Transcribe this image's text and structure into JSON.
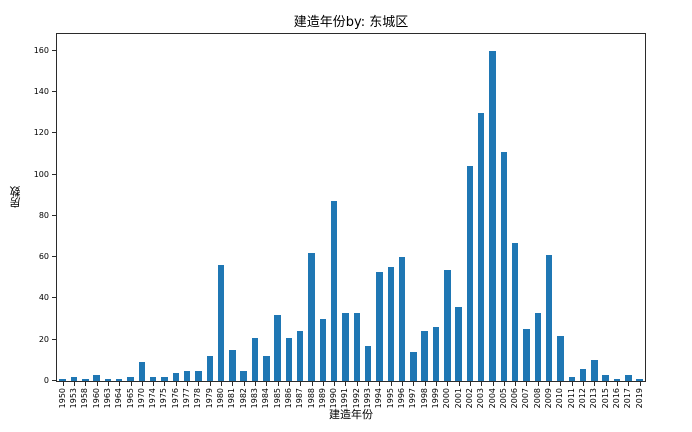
{
  "chart_data": {
    "type": "bar",
    "title": "建造年份by: 东城区",
    "xlabel": "建造年份",
    "ylabel": "房数",
    "categories": [
      "1950",
      "1953",
      "1958",
      "1960",
      "1963",
      "1964",
      "1965",
      "1970",
      "1974",
      "1975",
      "1976",
      "1977",
      "1978",
      "1979",
      "1980",
      "1981",
      "1982",
      "1983",
      "1984",
      "1985",
      "1986",
      "1987",
      "1988",
      "1989",
      "1990",
      "1991",
      "1992",
      "1993",
      "1994",
      "1995",
      "1996",
      "1997",
      "1998",
      "1999",
      "2000",
      "2001",
      "2002",
      "2003",
      "2004",
      "2005",
      "2006",
      "2007",
      "2008",
      "2009",
      "2010",
      "2011",
      "2012",
      "2013",
      "2015",
      "2016",
      "2017",
      "2019"
    ],
    "values": [
      1,
      2,
      1,
      3,
      1,
      1,
      2,
      9,
      2,
      2,
      4,
      5,
      5,
      12,
      56,
      15,
      5,
      21,
      12,
      32,
      21,
      24,
      62,
      30,
      87,
      33,
      33,
      17,
      53,
      55,
      60,
      14,
      24,
      26,
      54,
      36,
      104,
      130,
      160,
      111,
      67,
      25,
      33,
      61,
      22,
      2,
      6,
      10,
      3,
      1,
      3,
      1
    ],
    "yticks": [
      0,
      20,
      40,
      60,
      80,
      100,
      120,
      140,
      160
    ],
    "ylim": [
      0,
      168
    ],
    "bar_color": "#1f77b4",
    "grid": false,
    "legend": null,
    "xtick_rotation": 90
  }
}
